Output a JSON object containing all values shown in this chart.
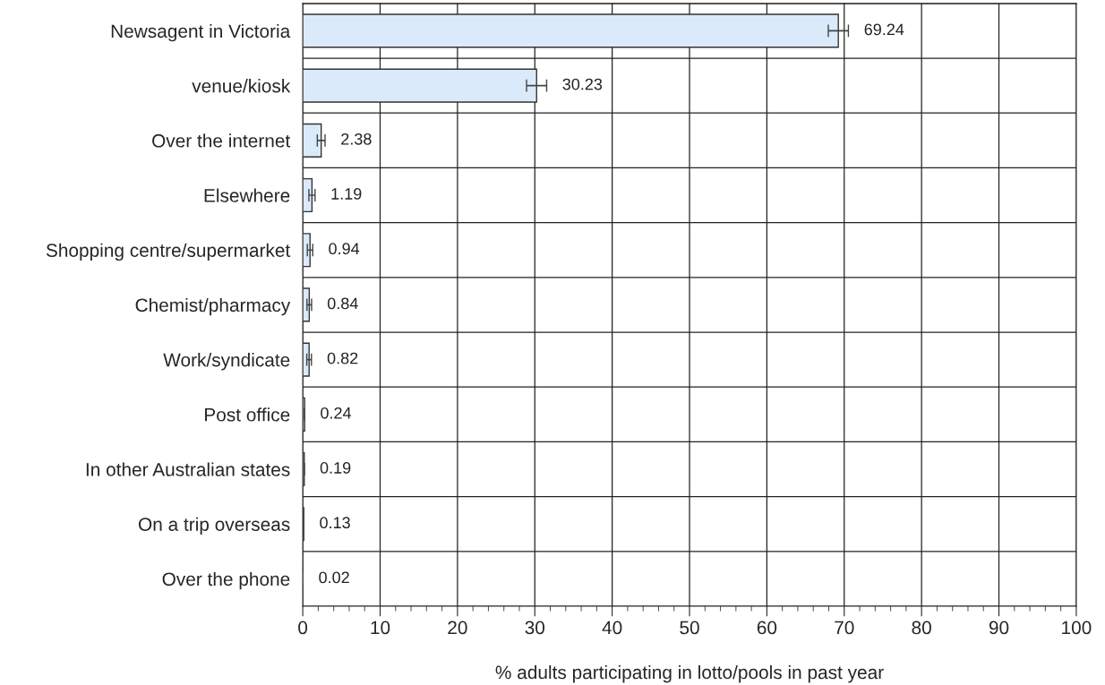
{
  "chart_data": {
    "type": "bar",
    "orientation": "horizontal",
    "xlabel": "% adults participating in lotto/pools in past year",
    "categories": [
      "Newsagent in Victoria",
      "venue/kiosk",
      "Over the internet",
      "Elsewhere",
      "Shopping centre/supermarket",
      "Chemist/pharmacy",
      "Work/syndicate",
      "Post office",
      "In other Australian states",
      "On a trip overseas",
      "Over the phone"
    ],
    "values": [
      69.24,
      30.23,
      2.38,
      1.19,
      0.94,
      0.84,
      0.82,
      0.24,
      0.19,
      0.13,
      0.02
    ],
    "errors": [
      1.3,
      1.3,
      0.5,
      0.4,
      0.35,
      0.3,
      0.3,
      null,
      null,
      null,
      null
    ],
    "color": "#dbeafb",
    "data_labels": true,
    "xlim": [
      0,
      100
    ],
    "xticks": [
      0,
      10,
      20,
      30,
      40,
      50,
      60,
      70,
      80,
      90,
      100
    ],
    "grid": true
  }
}
